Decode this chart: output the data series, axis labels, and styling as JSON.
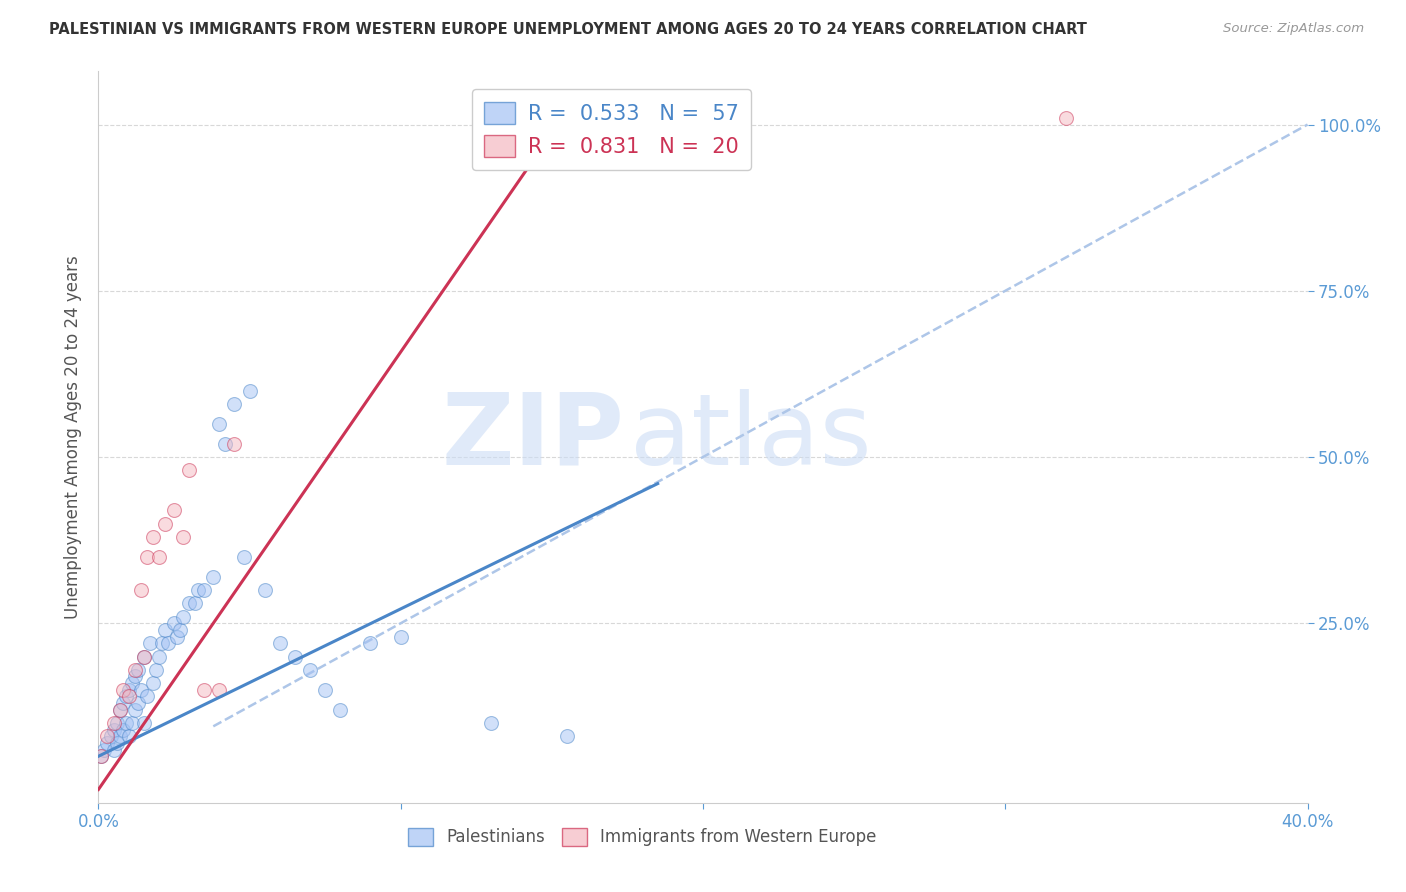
{
  "title": "PALESTINIAN VS IMMIGRANTS FROM WESTERN EUROPE UNEMPLOYMENT AMONG AGES 20 TO 24 YEARS CORRELATION CHART",
  "source": "Source: ZipAtlas.com",
  "ylabel": "Unemployment Among Ages 20 to 24 years",
  "xlim": [
    0.0,
    0.4
  ],
  "ylim": [
    -0.02,
    1.08
  ],
  "xticks": [
    0.0,
    0.1,
    0.2,
    0.3,
    0.4
  ],
  "xtick_labels": [
    "0.0%",
    "",
    "",
    "",
    "40.0%"
  ],
  "yticks_right": [
    0.25,
    0.5,
    0.75,
    1.0
  ],
  "ytick_labels_right": [
    "25.0%",
    "50.0%",
    "75.0%",
    "100.0%"
  ],
  "blue_color": "#a4c2f4",
  "pink_color": "#f4b8c1",
  "blue_line_color": "#4a86c8",
  "pink_line_color": "#cc3355",
  "dashed_line_color": "#aec6e8",
  "legend_blue_R": "0.533",
  "legend_blue_N": "57",
  "legend_pink_R": "0.831",
  "legend_pink_N": "20",
  "blue_scatter_x": [
    0.001,
    0.002,
    0.003,
    0.004,
    0.005,
    0.005,
    0.006,
    0.006,
    0.007,
    0.007,
    0.008,
    0.008,
    0.009,
    0.009,
    0.01,
    0.01,
    0.011,
    0.011,
    0.012,
    0.012,
    0.013,
    0.013,
    0.014,
    0.015,
    0.015,
    0.016,
    0.017,
    0.018,
    0.019,
    0.02,
    0.021,
    0.022,
    0.023,
    0.025,
    0.026,
    0.027,
    0.028,
    0.03,
    0.032,
    0.033,
    0.035,
    0.038,
    0.04,
    0.042,
    0.045,
    0.048,
    0.05,
    0.055,
    0.06,
    0.065,
    0.07,
    0.075,
    0.08,
    0.09,
    0.1,
    0.13,
    0.155
  ],
  "blue_scatter_y": [
    0.05,
    0.06,
    0.07,
    0.08,
    0.06,
    0.09,
    0.07,
    0.1,
    0.08,
    0.12,
    0.09,
    0.13,
    0.1,
    0.14,
    0.08,
    0.15,
    0.1,
    0.16,
    0.12,
    0.17,
    0.13,
    0.18,
    0.15,
    0.1,
    0.2,
    0.14,
    0.22,
    0.16,
    0.18,
    0.2,
    0.22,
    0.24,
    0.22,
    0.25,
    0.23,
    0.24,
    0.26,
    0.28,
    0.28,
    0.3,
    0.3,
    0.32,
    0.55,
    0.52,
    0.58,
    0.35,
    0.6,
    0.3,
    0.22,
    0.2,
    0.18,
    0.15,
    0.12,
    0.22,
    0.23,
    0.1,
    0.08
  ],
  "pink_scatter_x": [
    0.001,
    0.003,
    0.005,
    0.007,
    0.008,
    0.01,
    0.012,
    0.014,
    0.015,
    0.016,
    0.018,
    0.02,
    0.022,
    0.025,
    0.028,
    0.03,
    0.035,
    0.04,
    0.045,
    0.32
  ],
  "pink_scatter_y": [
    0.05,
    0.08,
    0.1,
    0.12,
    0.15,
    0.14,
    0.18,
    0.3,
    0.2,
    0.35,
    0.38,
    0.35,
    0.4,
    0.42,
    0.38,
    0.48,
    0.15,
    0.15,
    0.52,
    1.01
  ],
  "blue_line_x": [
    0.0,
    0.185
  ],
  "blue_line_y": [
    0.05,
    0.46
  ],
  "pink_line_x": [
    0.0,
    0.155
  ],
  "pink_line_y": [
    0.0,
    1.02
  ],
  "ref_line_x": [
    0.038,
    0.4
  ],
  "ref_line_y": [
    0.095,
    1.0
  ],
  "watermark_zip": "ZIP",
  "watermark_atlas": "atlas",
  "background_color": "#ffffff",
  "grid_color": "#d8d8d8",
  "title_color": "#333333",
  "axis_label_color": "#555555",
  "right_axis_color": "#5b9bd5",
  "bottom_axis_color": "#5b9bd5",
  "scatter_size": 100,
  "scatter_alpha": 0.5
}
